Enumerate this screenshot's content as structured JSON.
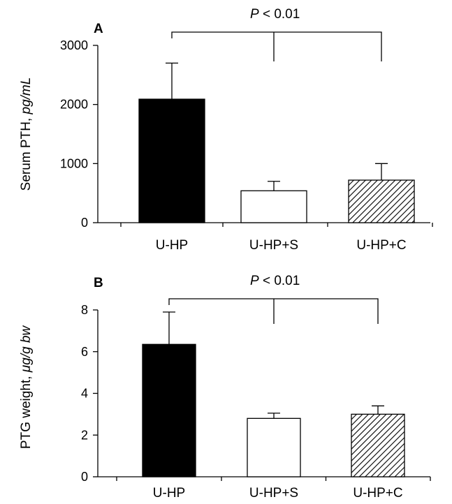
{
  "chart_data": [
    {
      "type": "bar",
      "panel": "A",
      "categories": [
        "U-HP",
        "U-HP+S",
        "U-HP+C"
      ],
      "values": [
        2090,
        540,
        720
      ],
      "errors": [
        610,
        160,
        280
      ],
      "fills": [
        "solid",
        "open",
        "hatched"
      ],
      "ylabel": "Serum PTH, ",
      "ylabel_unit": "pg/mL",
      "ylim": [
        0,
        3000
      ],
      "yticks": [
        0,
        1000,
        2000,
        3000
      ],
      "significance": {
        "p_symbol": "P",
        "text": " < 0.01"
      },
      "grid": false
    },
    {
      "type": "bar",
      "panel": "B",
      "categories": [
        "U-HP",
        "U-HP+S",
        "U-HP+C"
      ],
      "values": [
        6.35,
        2.8,
        3.0
      ],
      "errors": [
        1.55,
        0.25,
        0.4
      ],
      "fills": [
        "solid",
        "open",
        "hatched"
      ],
      "ylabel": "PTG weight, ",
      "ylabel_unit": "μg/g bw",
      "ylim": [
        0,
        8
      ],
      "yticks": [
        0,
        2,
        4,
        6,
        8
      ],
      "significance": {
        "p_symbol": "P",
        "text": " < 0.01"
      },
      "grid": false
    }
  ],
  "colors": {
    "solid": "#000000",
    "open": "#ffffff",
    "stroke": "#000000"
  }
}
